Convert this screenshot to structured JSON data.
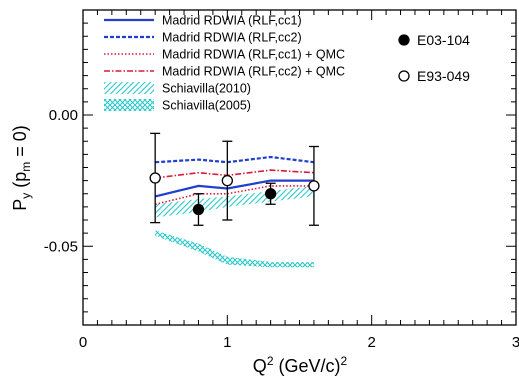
{
  "chart_data": {
    "type": "line",
    "xlabel": "Q² (GeV/c)²",
    "ylabel": "Py (pm = 0)",
    "xlim": [
      0,
      3
    ],
    "ylim": [
      -0.08,
      0.04
    ],
    "x_ticks": [
      0,
      1,
      2,
      3
    ],
    "x_tick_labels": [
      "0",
      "1",
      "2",
      "3"
    ],
    "y_ticks": [
      0.0,
      -0.05
    ],
    "y_tick_labels": [
      "0.00",
      "-0.05"
    ],
    "grid": false,
    "legend_left": "top-left",
    "legend_right": "top-right",
    "x_title_parts": {
      "main": "Q",
      "sup": "2",
      "mid": " (GeV/c)",
      "sup2": "2"
    },
    "y_title_parts": {
      "p1": "P",
      "sub1": "y",
      "p2": " (p",
      "sub2": "m",
      "p3": " = 0)"
    },
    "series": [
      {
        "name": "Madrid RDWIA (RLF,cc1)",
        "style": "solid",
        "color": "#1f3fcc",
        "x": [
          0.5,
          0.8,
          1.0,
          1.3,
          1.6
        ],
        "y": [
          -0.031,
          -0.027,
          -0.028,
          -0.025,
          -0.025
        ]
      },
      {
        "name": "Madrid RDWIA (RLF,cc2)",
        "style": "dashed",
        "color": "#1f3fcc",
        "x": [
          0.5,
          0.8,
          1.0,
          1.3,
          1.6
        ],
        "y": [
          -0.018,
          -0.017,
          -0.018,
          -0.016,
          -0.018
        ]
      },
      {
        "name": "Madrid RDWIA (RLF,cc1) + QMC",
        "style": "dotted",
        "color": "#d81b3c",
        "x": [
          0.5,
          0.8,
          1.0,
          1.3,
          1.6
        ],
        "y": [
          -0.034,
          -0.03,
          -0.03,
          -0.027,
          -0.027
        ]
      },
      {
        "name": "Madrid RDWIA (RLF,cc2) + QMC",
        "style": "dashdot",
        "color": "#d81b3c",
        "x": [
          0.5,
          0.8,
          1.0,
          1.3,
          1.6
        ],
        "y": [
          -0.024,
          -0.022,
          -0.023,
          -0.021,
          -0.022
        ]
      }
    ],
    "bands": [
      {
        "name": "Schiavilla(2010)",
        "color": "#2ec8c8",
        "pattern": "hatch",
        "x": [
          0.5,
          0.8,
          1.0,
          1.3,
          1.6
        ],
        "y_low": [
          -0.039,
          -0.037,
          -0.035,
          -0.033,
          -0.031
        ],
        "y_high": [
          -0.034,
          -0.032,
          -0.031,
          -0.029,
          -0.027
        ]
      },
      {
        "name": "Schiavilla(2005)",
        "color": "#2ec8c8",
        "pattern": "crosshatch",
        "x": [
          0.5,
          0.8,
          1.0,
          1.3,
          1.6
        ],
        "y_low": [
          -0.046,
          -0.052,
          -0.057,
          -0.058,
          -0.058
        ],
        "y_high": [
          -0.044,
          -0.049,
          -0.054,
          -0.056,
          -0.056
        ]
      }
    ],
    "points": [
      {
        "name": "E03-104",
        "marker": "filled-circle",
        "x": [
          0.8,
          1.3
        ],
        "y": [
          -0.036,
          -0.03
        ],
        "err": [
          0.006,
          0.004
        ]
      },
      {
        "name": "E93-049",
        "marker": "open-circle",
        "x": [
          0.5,
          1.0,
          1.6
        ],
        "y": [
          -0.024,
          -0.025,
          -0.027
        ],
        "err": [
          0.017,
          0.015,
          0.015
        ]
      }
    ]
  }
}
